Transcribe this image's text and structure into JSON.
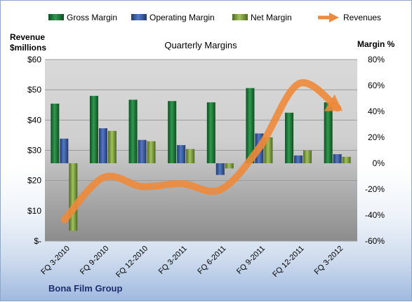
{
  "chart_data": {
    "type": "bar",
    "title": "Quarterly Margins",
    "left_axis": {
      "label_line1": "Revenue",
      "label_line2": "$millions",
      "ylim": [
        0,
        60
      ],
      "ticks": [
        "$-",
        "$10",
        "$20",
        "$30",
        "$40",
        "$50",
        "$60"
      ]
    },
    "right_axis": {
      "label": "Margin %",
      "ylim": [
        -60,
        80
      ],
      "ticks": [
        "-60%",
        "-40%",
        "-20%",
        "0%",
        "20%",
        "40%",
        "60%",
        "80%"
      ]
    },
    "categories": [
      "FQ 3-2010",
      "FQ 9-2010",
      "FQ 12-2010",
      "FQ 3-2011",
      "FQ 6-2011",
      "FQ 9-2011",
      "FQ 12-2011",
      "FQ 3-2012"
    ],
    "series": [
      {
        "name": "Gross Margin",
        "kind": "bar",
        "axis": "right",
        "color": "#1f7a3a",
        "values": [
          46,
          52,
          49,
          48,
          47,
          58,
          39,
          47
        ]
      },
      {
        "name": "Operating Margin",
        "kind": "bar",
        "axis": "right",
        "color": "#3a5ea8",
        "values": [
          19,
          27,
          18,
          14,
          -9,
          23,
          6,
          7
        ]
      },
      {
        "name": "Net Margin",
        "kind": "bar",
        "axis": "right",
        "color": "#7fa03e",
        "values": [
          -52,
          25,
          17,
          11,
          -4,
          20,
          10,
          5
        ]
      },
      {
        "name": "Revenues",
        "kind": "line",
        "axis": "left",
        "color": "#ee8a3a",
        "values": [
          7,
          21,
          18,
          19,
          17,
          31,
          52,
          44
        ]
      }
    ],
    "legend_position": "top",
    "grid": true,
    "footer": "Bona Film Group"
  }
}
